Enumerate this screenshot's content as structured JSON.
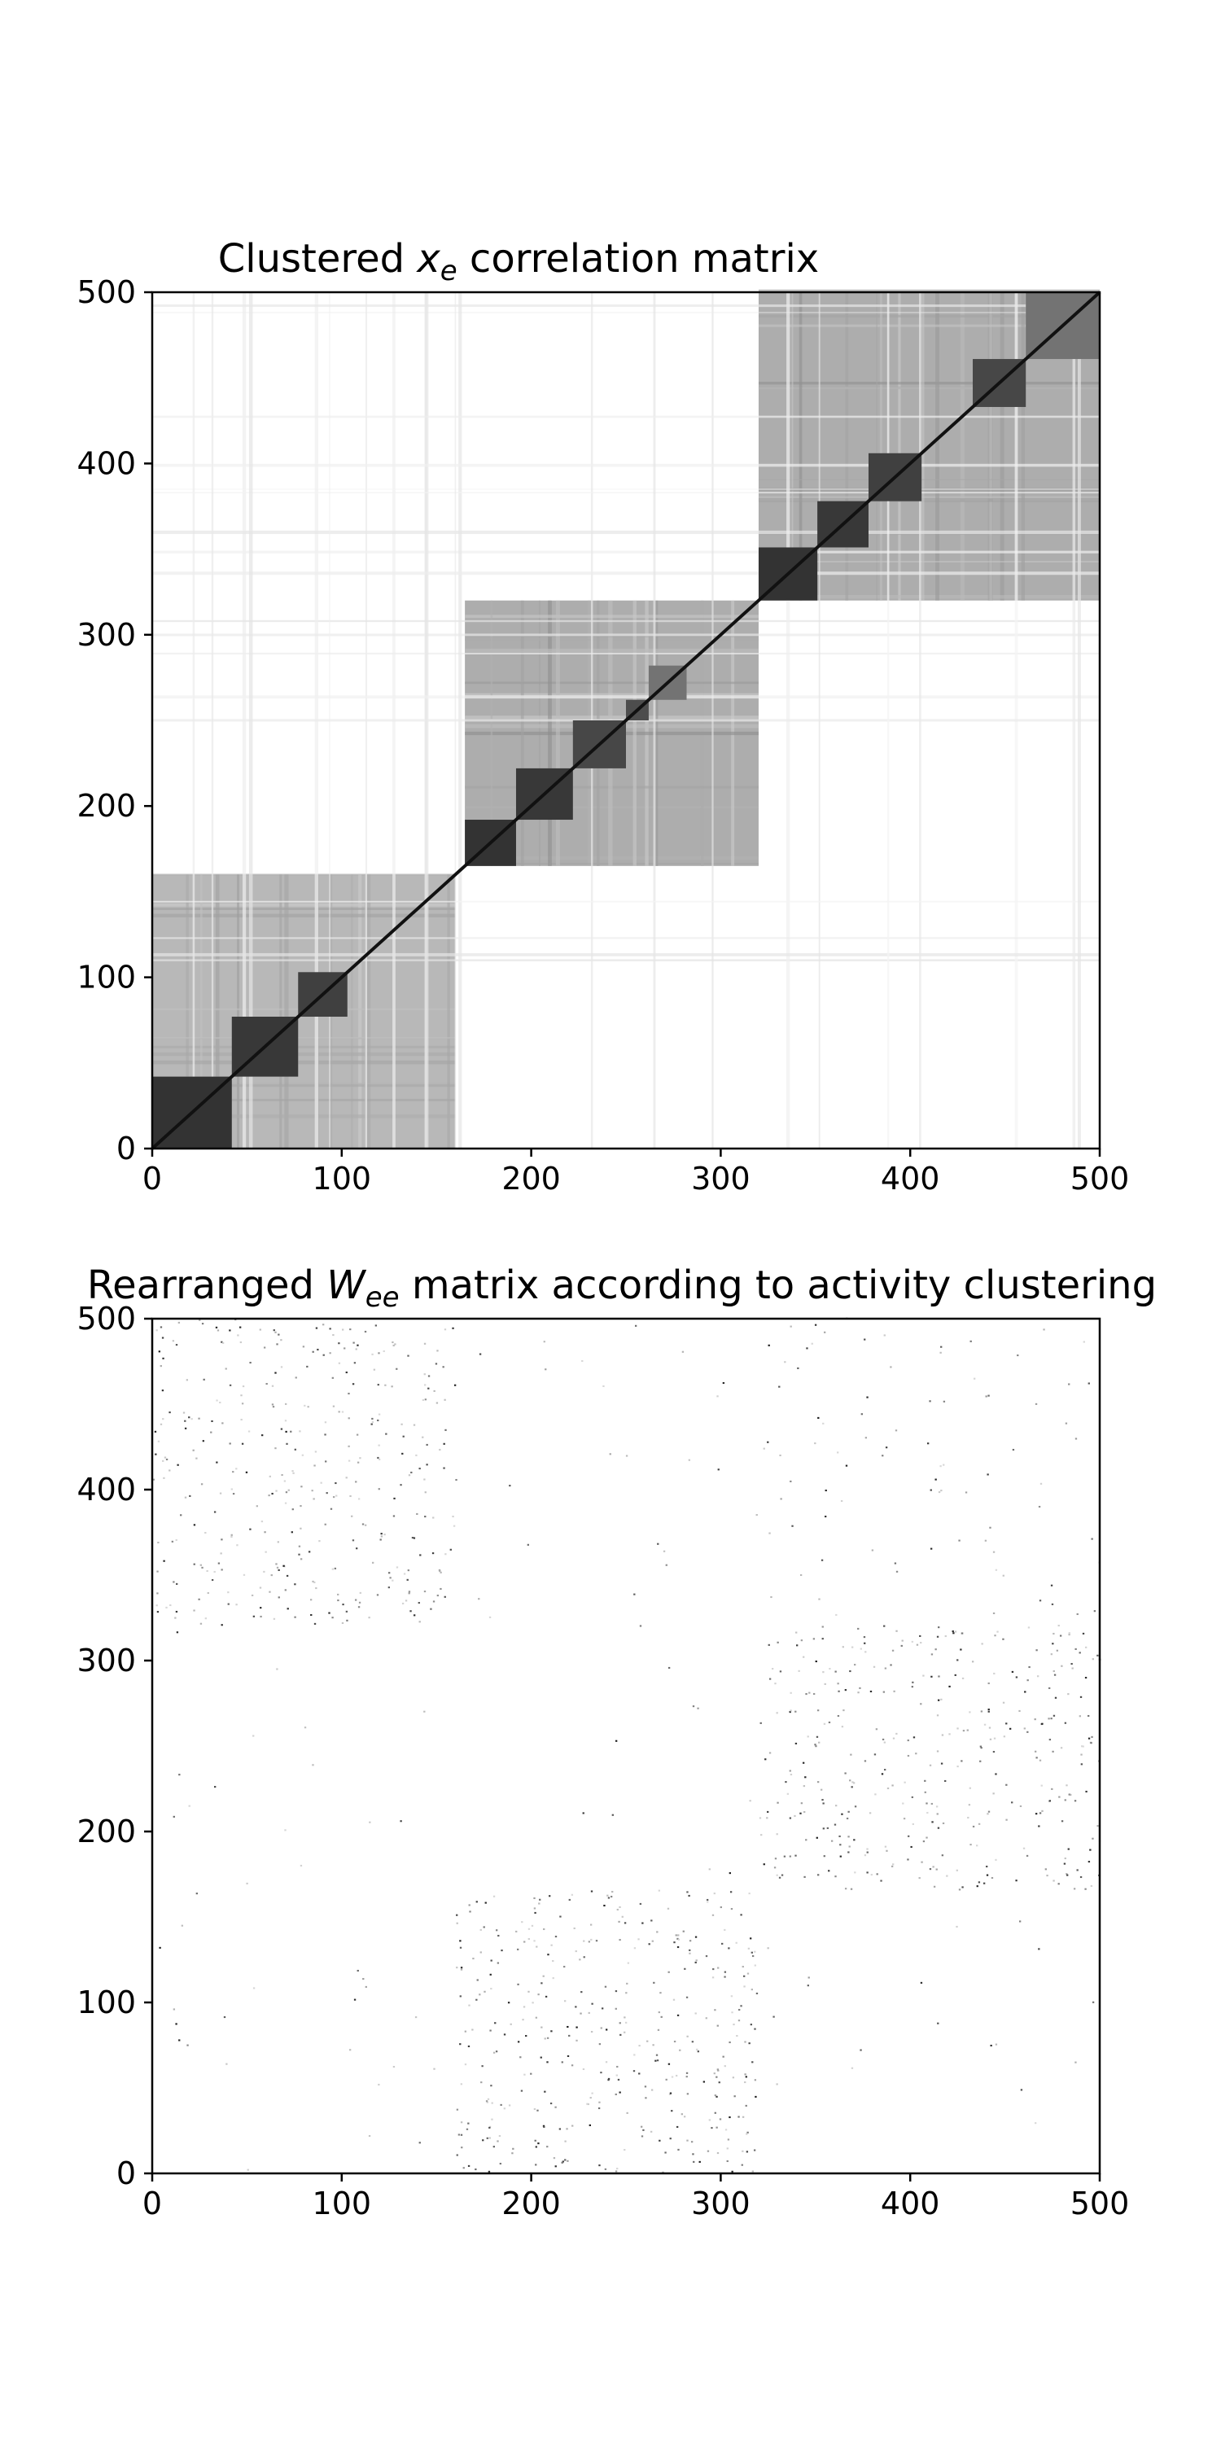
{
  "chart_data": [
    {
      "type": "heatmap",
      "title": {
        "prefix": "Clustered ",
        "var": "x",
        "sub": "e",
        "suffix": " correlation matrix"
      },
      "xlabel": "",
      "ylabel": "",
      "xlim": [
        0,
        500
      ],
      "ylim": [
        0,
        500
      ],
      "x_ticks": [
        "0",
        "100",
        "200",
        "300",
        "400",
        "500"
      ],
      "y_ticks": [
        "0",
        "100",
        "200",
        "300",
        "400",
        "500"
      ],
      "colormap": "grayscale (white = low, black = high)",
      "grid": false,
      "diagonal": {
        "from": 0,
        "to": 500,
        "value": 1.0
      },
      "super_blocks": [
        {
          "from": 0,
          "to": 160,
          "intensity": 0.28
        },
        {
          "from": 165,
          "to": 320,
          "intensity": 0.32
        },
        {
          "from": 320,
          "to": 500,
          "intensity": 0.32
        }
      ],
      "dense_blocks": [
        {
          "from": 0,
          "to": 42,
          "intensity": 0.8
        },
        {
          "from": 42,
          "to": 77,
          "intensity": 0.78
        },
        {
          "from": 77,
          "to": 103,
          "intensity": 0.75
        },
        {
          "from": 165,
          "to": 192,
          "intensity": 0.8
        },
        {
          "from": 192,
          "to": 222,
          "intensity": 0.78
        },
        {
          "from": 222,
          "to": 250,
          "intensity": 0.72
        },
        {
          "from": 250,
          "to": 262,
          "intensity": 0.7
        },
        {
          "from": 262,
          "to": 282,
          "intensity": 0.55
        },
        {
          "from": 320,
          "to": 351,
          "intensity": 0.8
        },
        {
          "from": 351,
          "to": 378,
          "intensity": 0.78
        },
        {
          "from": 378,
          "to": 406,
          "intensity": 0.75
        },
        {
          "from": 433,
          "to": 461,
          "intensity": 0.72
        },
        {
          "from": 461,
          "to": 500,
          "intensity": 0.55
        }
      ]
    },
    {
      "type": "heatmap",
      "title": {
        "prefix": "Rearranged ",
        "var": "W",
        "sub": "ee",
        "suffix": " matrix according to activity clustering"
      },
      "xlabel": "",
      "ylabel": "",
      "xlim": [
        0,
        500
      ],
      "ylim": [
        0,
        500
      ],
      "x_ticks": [
        "0",
        "100",
        "200",
        "300",
        "400",
        "500"
      ],
      "y_ticks": [
        "0",
        "100",
        "200",
        "300",
        "400",
        "500"
      ],
      "colormap": "grayscale (white = 0, black = max weight)",
      "grid": false,
      "sparse_regions": [
        {
          "x": [
            0,
            160
          ],
          "y": [
            320,
            500
          ],
          "density": 0.012
        },
        {
          "x": [
            160,
            320
          ],
          "y": [
            0,
            165
          ],
          "density": 0.014
        },
        {
          "x": [
            320,
            500
          ],
          "y": [
            165,
            320
          ],
          "density": 0.013
        },
        {
          "x": [
            320,
            500
          ],
          "y": [
            320,
            500
          ],
          "density": 0.002
        },
        {
          "x": [
            0,
            500
          ],
          "y": [
            0,
            500
          ],
          "density": 0.0006
        }
      ]
    }
  ]
}
